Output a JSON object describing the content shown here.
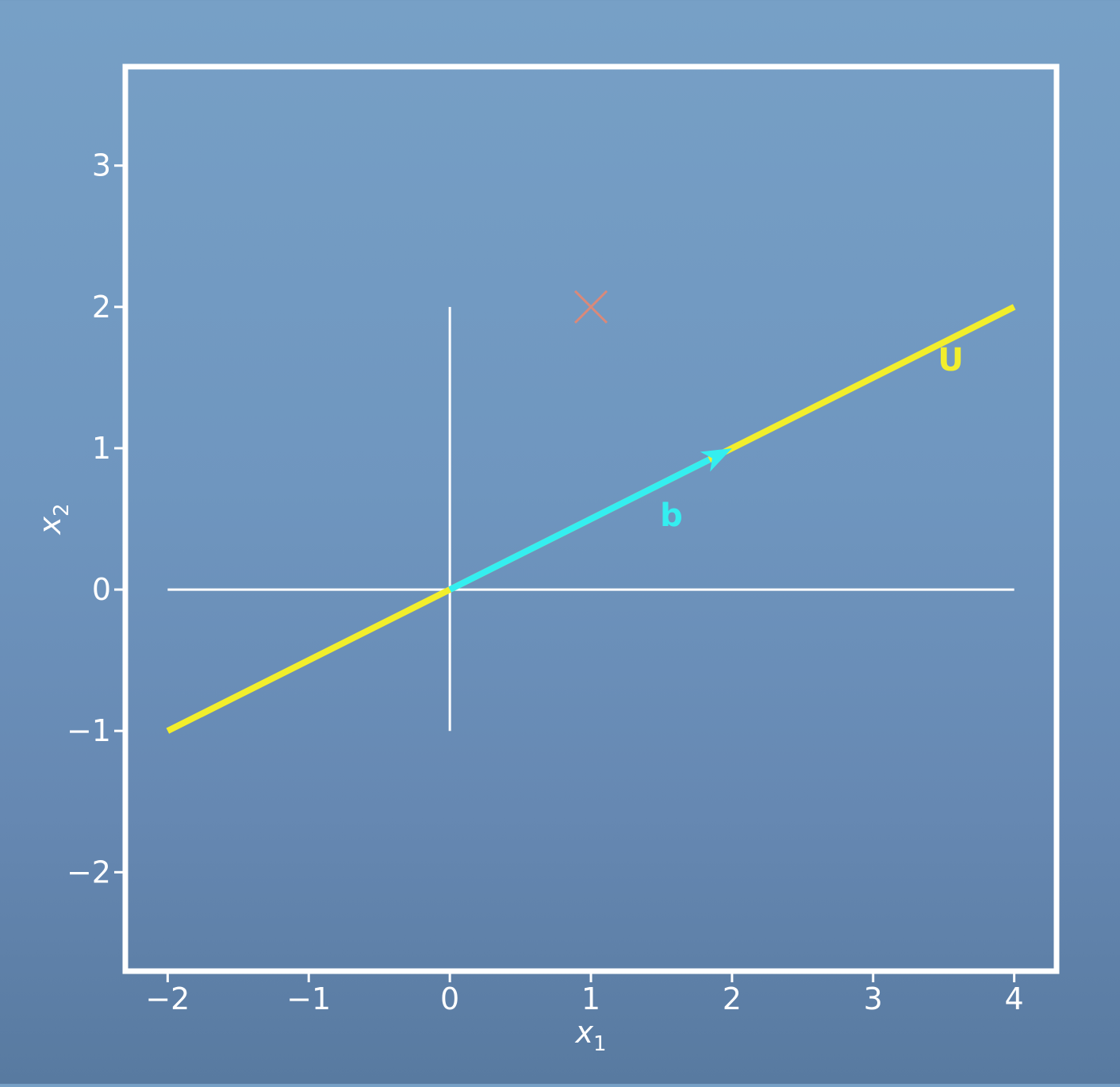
{
  "chart_data": {
    "type": "line",
    "title": "",
    "xlabel": "x",
    "xlabel_sub": "1",
    "ylabel": "x",
    "ylabel_sub": "2",
    "xlim": [
      -2.3,
      4.3
    ],
    "ylim": [
      -2.7,
      3.7
    ],
    "xticks": [
      -2,
      -1,
      0,
      1,
      2,
      3,
      4
    ],
    "xtick_labels": [
      "−2",
      "−1",
      "0",
      "1",
      "2",
      "3",
      "4"
    ],
    "yticks": [
      -2,
      -1,
      0,
      1,
      2,
      3
    ],
    "ytick_labels": [
      "−2",
      "−1",
      "0",
      "1",
      "2",
      "3"
    ],
    "grid": false,
    "axes_lines": {
      "horizontal": {
        "x": [
          -2,
          4
        ],
        "y": 0
      },
      "vertical": {
        "x": 0,
        "y": [
          -1,
          2
        ]
      }
    },
    "series": [
      {
        "name": "U",
        "kind": "line",
        "color": "#f2ee2c",
        "x": [
          -2,
          4
        ],
        "y": [
          -1,
          2
        ]
      },
      {
        "name": "b",
        "kind": "vector",
        "color": "#34eef0",
        "from": [
          0,
          0
        ],
        "to": [
          2,
          1
        ]
      }
    ],
    "markers": [
      {
        "kind": "x",
        "color": "#d9897a",
        "x": 1,
        "y": 2
      }
    ],
    "labels": {
      "line_label": "U",
      "vector_label": "b"
    },
    "colors": {
      "frame": "#ffffff",
      "text": "#ffffff",
      "line_u": "#f2ee2c",
      "vector_b": "#34eef0",
      "marker": "#d9897a"
    }
  }
}
